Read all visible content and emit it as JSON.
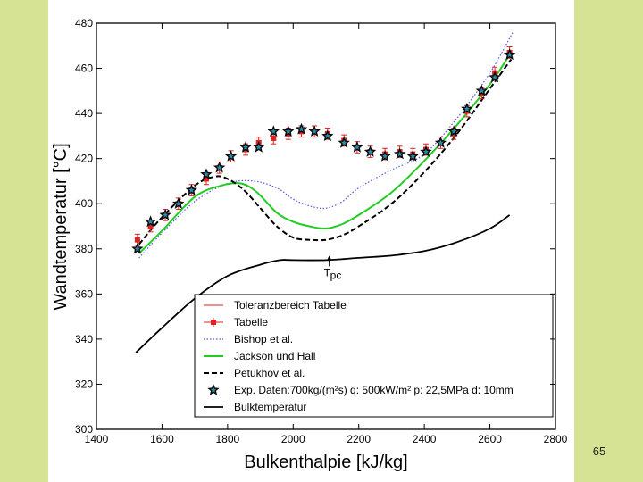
{
  "slide": {
    "page_number": "65"
  },
  "chart_data": {
    "type": "line",
    "title": "",
    "xlabel": "Bulkenthalpie [kJ/kg]",
    "ylabel": "Wandtemperatur [°C]",
    "xlim": [
      1400,
      2800
    ],
    "ylim": [
      300,
      480
    ],
    "x_ticks": [
      1400,
      1600,
      1800,
      2000,
      2200,
      2400,
      2600,
      2800
    ],
    "y_ticks": [
      300,
      320,
      340,
      360,
      380,
      400,
      420,
      440,
      460,
      480
    ],
    "grid": false,
    "legend_position": "bottom-right",
    "annotation": {
      "label": "T",
      "subscript": "pc",
      "x": 2110,
      "y": 377
    },
    "series": [
      {
        "name": "Toleranzbereich Tabelle",
        "style": "thin-red-line",
        "color": "#dd2222",
        "points": []
      },
      {
        "name": "Tabelle",
        "style": "red-square-errorbar",
        "color": "#dd2222",
        "error": 2.5,
        "x": [
          1525,
          1565,
          1610,
          1650,
          1690,
          1735,
          1775,
          1810,
          1855,
          1895,
          1940,
          1985,
          2025,
          2065,
          2105,
          2155,
          2195,
          2235,
          2280,
          2325,
          2365,
          2405,
          2450,
          2490,
          2530,
          2575,
          2615,
          2660
        ],
        "y": [
          384,
          390,
          395,
          400,
          406,
          411,
          416,
          421,
          424,
          427,
          429,
          431,
          432,
          432,
          431,
          428,
          425,
          423,
          422,
          423,
          422,
          424,
          427,
          431,
          441,
          449,
          458,
          467
        ]
      },
      {
        "name": "Bishop et al.",
        "style": "blue-dotted",
        "color": "#4a5adb",
        "x": [
          1530,
          1600,
          1700,
          1800,
          1880,
          1950,
          2000,
          2050,
          2100,
          2150,
          2200,
          2300,
          2400,
          2500,
          2600,
          2670
        ],
        "y": [
          376,
          387,
          401,
          409,
          410,
          407,
          402,
          399,
          398,
          401,
          407,
          415,
          422,
          438,
          458,
          476
        ]
      },
      {
        "name": "Jackson und Hall",
        "style": "green-solid",
        "color": "#22cc22",
        "x": [
          1530,
          1600,
          1700,
          1780,
          1840,
          1890,
          1950,
          2000,
          2050,
          2100,
          2150,
          2200,
          2300,
          2400,
          2500,
          2600,
          2665
        ],
        "y": [
          378,
          388,
          403,
          408,
          409,
          405,
          396,
          392,
          390,
          389,
          391,
          395,
          405,
          419,
          435,
          453,
          467
        ]
      },
      {
        "name": "Petukhov et al.",
        "style": "black-dashed",
        "color": "#000000",
        "x": [
          1530,
          1600,
          1700,
          1760,
          1800,
          1850,
          1900,
          1950,
          2000,
          2050,
          2100,
          2150,
          2200,
          2300,
          2400,
          2500,
          2600,
          2665
        ],
        "y": [
          382,
          394,
          408,
          412,
          411,
          406,
          398,
          390,
          385,
          384,
          384,
          386,
          390,
          400,
          414,
          431,
          451,
          464
        ]
      },
      {
        "name": "Exp. Daten:700kg/(m²s) q: 500kW/m² p: 22,5MPa d: 10mm",
        "style": "star-marker",
        "color": "#1f4e6e",
        "x": [
          1525,
          1565,
          1610,
          1650,
          1690,
          1735,
          1775,
          1810,
          1855,
          1895,
          1940,
          1985,
          2025,
          2065,
          2105,
          2155,
          2195,
          2235,
          2280,
          2325,
          2365,
          2405,
          2450,
          2490,
          2530,
          2575,
          2615,
          2660
        ],
        "y": [
          380,
          392,
          395,
          400,
          406,
          413,
          416,
          421,
          425,
          425,
          432,
          432,
          433,
          432,
          430,
          427,
          425,
          423,
          421,
          422,
          421,
          423,
          427,
          432,
          442,
          450,
          456,
          466
        ]
      },
      {
        "name": "Bulktemperatur",
        "style": "black-solid",
        "color": "#000000",
        "x": [
          1520,
          1600,
          1700,
          1800,
          1900,
          1960,
          2000,
          2100,
          2200,
          2300,
          2400,
          2500,
          2600,
          2660
        ],
        "y": [
          334,
          345,
          358,
          368,
          373,
          375,
          375,
          375,
          376,
          377,
          379,
          383,
          389,
          395
        ]
      }
    ]
  }
}
